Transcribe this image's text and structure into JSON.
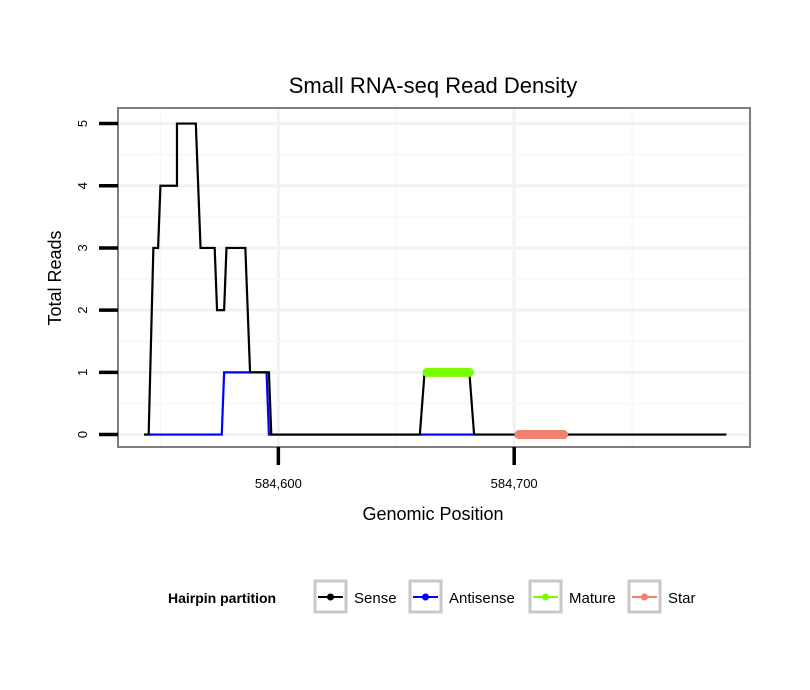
{
  "chart_data": {
    "type": "line",
    "title": "Small RNA-seq Read Density",
    "xlabel": "Genomic Position",
    "ylabel": "Total Reads",
    "xlim": [
      584532,
      584800
    ],
    "ylim": [
      -0.2,
      5.25
    ],
    "x_ticks": [
      584600,
      584700
    ],
    "x_tick_labels": [
      "584,600",
      "584,700"
    ],
    "y_ticks": [
      0,
      1,
      2,
      3,
      4,
      5
    ],
    "y_tick_labels": [
      "0",
      "1",
      "2",
      "3",
      "4",
      "5"
    ],
    "grid": true,
    "legend": {
      "title": "Hairpin partition",
      "position": "bottom",
      "entries": [
        "Sense",
        "Antisense",
        "Mature",
        "Star"
      ]
    },
    "series": [
      {
        "name": "Sense",
        "color": "#000000",
        "style": "line",
        "points": [
          [
            584543,
            0
          ],
          [
            584545,
            0
          ],
          [
            584547,
            3
          ],
          [
            584549,
            3
          ],
          [
            584550,
            4
          ],
          [
            584557,
            4
          ],
          [
            584557,
            5
          ],
          [
            584565,
            5
          ],
          [
            584566,
            4
          ],
          [
            584567,
            3
          ],
          [
            584573,
            3
          ],
          [
            584574,
            2
          ],
          [
            584577,
            2
          ],
          [
            584578,
            3
          ],
          [
            584586,
            3
          ],
          [
            584587,
            2
          ],
          [
            584588,
            1
          ],
          [
            584596,
            1
          ],
          [
            584597,
            0
          ],
          [
            584660,
            0
          ],
          [
            584662,
            1
          ],
          [
            584681,
            1
          ],
          [
            584683,
            0
          ],
          [
            584790,
            0
          ]
        ]
      },
      {
        "name": "Antisense",
        "color": "#0000ff",
        "style": "line",
        "points": [
          [
            584545,
            0
          ],
          [
            584576,
            0
          ],
          [
            584577,
            1
          ],
          [
            584595,
            1
          ],
          [
            584596,
            0
          ],
          [
            584683,
            0
          ]
        ]
      },
      {
        "name": "Mature",
        "color": "#7cfc00",
        "style": "thick",
        "points": [
          [
            584663,
            1
          ],
          [
            584681,
            1
          ]
        ]
      },
      {
        "name": "Star",
        "color": "#f08070",
        "style": "thick",
        "points": [
          [
            584702,
            0
          ],
          [
            584721,
            0
          ]
        ]
      }
    ]
  }
}
